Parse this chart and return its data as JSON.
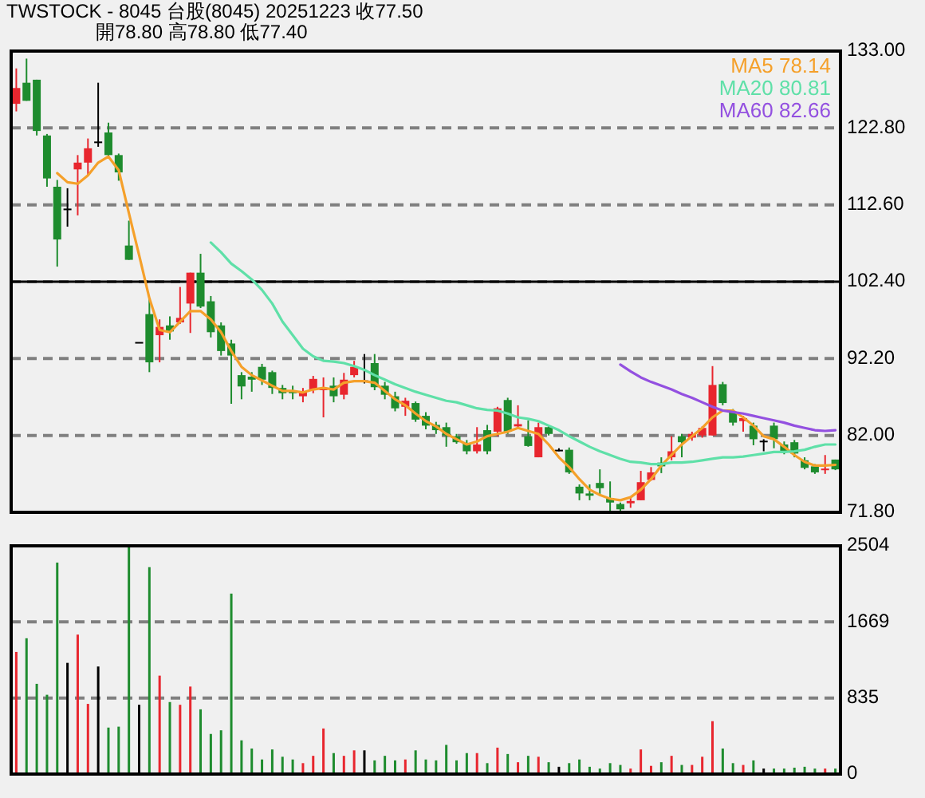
{
  "chart_data": [
    {
      "type": "candlestick",
      "title": "TWSTOCK - 8045 台股(8045) 20251223 收77.50",
      "subtitle": "開78.80 高78.80 低77.40",
      "categories": [
        null,
        null,
        null,
        null,
        null,
        null,
        null,
        null,
        null,
        null,
        null,
        null,
        null,
        null,
        null,
        null,
        null,
        null,
        null,
        null,
        null,
        null,
        null,
        null,
        null,
        null,
        null,
        null,
        null,
        null,
        null,
        null,
        null,
        null,
        null,
        null,
        null,
        null,
        null,
        null,
        null,
        null,
        null,
        null,
        null,
        null,
        null,
        null,
        null,
        null,
        null,
        null,
        null,
        null,
        null,
        null,
        null,
        null,
        null,
        null,
        null,
        null,
        null,
        null,
        null,
        null,
        null,
        null,
        null,
        null,
        null,
        null,
        null,
        null,
        null,
        null,
        null,
        null,
        null,
        null,
        null
      ],
      "ohlc": [
        [
          126.0,
          130.7,
          125.0,
          128.1
        ],
        [
          128.8,
          132.0,
          126.4,
          126.4
        ],
        [
          129.2,
          129.2,
          121.8,
          122.4
        ],
        [
          121.8,
          122.0,
          115.0,
          116.1
        ],
        [
          115.0,
          115.9,
          104.4,
          108.0
        ],
        [
          112.1,
          114.8,
          109.7,
          112.1
        ],
        [
          117.3,
          119.2,
          111.2,
          118.2
        ],
        [
          118.2,
          121.4,
          116.5,
          120.1
        ],
        [
          121.0,
          128.8,
          120.3,
          121.0
        ],
        [
          122.2,
          123.5,
          118.8,
          119.2
        ],
        [
          119.2,
          119.4,
          115.8,
          116.9
        ],
        [
          107.2,
          110.5,
          105.3,
          105.3
        ],
        [
          94.4,
          94.4,
          94.4,
          94.4
        ],
        [
          98.1,
          100.2,
          90.4,
          91.7
        ],
        [
          95.3,
          97.4,
          91.7,
          96.4
        ],
        [
          96.6,
          97.8,
          94.7,
          95.8
        ],
        [
          97.0,
          101.7,
          96.8,
          97.6
        ],
        [
          99.5,
          103.6,
          95.6,
          103.6
        ],
        [
          103.6,
          106.1,
          98.9,
          99.1
        ],
        [
          99.8,
          100.5,
          95.0,
          95.7
        ],
        [
          96.6,
          97.0,
          92.6,
          93.2
        ],
        [
          94.2,
          94.7,
          86.2,
          92.6
        ],
        [
          90.0,
          90.4,
          86.8,
          88.5
        ],
        [
          89.8,
          90.4,
          87.8,
          89.4
        ],
        [
          91.1,
          91.5,
          88.7,
          89.4
        ],
        [
          90.4,
          90.6,
          87.5,
          88.3
        ],
        [
          88.3,
          88.7,
          86.8,
          87.6
        ],
        [
          88.0,
          88.6,
          86.8,
          87.6
        ],
        [
          87.2,
          88.3,
          86.4,
          87.9
        ],
        [
          88.1,
          89.9,
          87.6,
          89.5
        ],
        [
          88.0,
          89.7,
          84.4,
          88.3
        ],
        [
          88.6,
          89.7,
          86.4,
          87.2
        ],
        [
          87.4,
          90.3,
          86.8,
          89.4
        ],
        [
          90.0,
          91.9,
          89.7,
          91.1
        ],
        [
          89.3,
          92.8,
          88.9,
          89.3
        ],
        [
          91.6,
          92.8,
          88.0,
          88.4
        ],
        [
          88.6,
          89.1,
          86.8,
          87.4
        ],
        [
          87.2,
          87.8,
          85.2,
          85.6
        ],
        [
          85.8,
          87.0,
          84.6,
          86.6
        ],
        [
          86.3,
          86.5,
          83.8,
          84.1
        ],
        [
          84.6,
          85.1,
          82.8,
          83.3
        ],
        [
          83.4,
          83.8,
          82.2,
          82.7
        ],
        [
          83.1,
          83.7,
          80.5,
          82.0
        ],
        [
          81.9,
          82.2,
          80.9,
          81.1
        ],
        [
          81.0,
          81.4,
          79.5,
          79.9
        ],
        [
          79.9,
          83.1,
          79.6,
          80.8
        ],
        [
          82.7,
          83.4,
          79.5,
          79.9
        ],
        [
          82.5,
          85.8,
          81.9,
          85.6
        ],
        [
          86.7,
          87.0,
          82.2,
          82.5
        ],
        [
          83.2,
          86.0,
          82.9,
          83.5
        ],
        [
          81.9,
          84.0,
          80.5,
          80.6
        ],
        [
          79.1,
          83.7,
          79.1,
          83.1
        ],
        [
          83.1,
          83.3,
          82.0,
          82.2
        ],
        [
          80.1,
          80.3,
          79.9,
          80.1
        ],
        [
          80.1,
          80.4,
          76.9,
          77.1
        ],
        [
          75.2,
          75.5,
          73.4,
          74.3
        ],
        [
          74.3,
          75.5,
          73.4,
          74.0
        ],
        [
          75.7,
          77.5,
          74.1,
          75.0
        ],
        [
          73.7,
          75.9,
          72.0,
          73.1
        ],
        [
          72.9,
          73.1,
          72.0,
          72.2
        ],
        [
          73.0,
          73.7,
          72.4,
          73.3
        ],
        [
          73.4,
          77.3,
          73.4,
          75.8
        ],
        [
          76.1,
          77.8,
          76.0,
          77.1
        ],
        [
          78.4,
          79.1,
          77.0,
          77.9
        ],
        [
          79.1,
          81.9,
          78.7,
          79.9
        ],
        [
          81.9,
          82.2,
          79.1,
          81.1
        ],
        [
          81.7,
          82.5,
          81.3,
          82.2
        ],
        [
          82.0,
          83.2,
          81.7,
          83.0
        ],
        [
          82.0,
          91.2,
          82.0,
          88.7
        ],
        [
          88.8,
          89.1,
          86.0,
          86.3
        ],
        [
          85.1,
          85.5,
          83.3,
          83.7
        ],
        [
          83.9,
          84.6,
          82.5,
          84.3
        ],
        [
          83.3,
          83.7,
          80.7,
          81.5
        ],
        [
          81.3,
          81.5,
          79.9,
          81.3
        ],
        [
          83.3,
          83.7,
          80.3,
          81.5
        ],
        [
          80.8,
          81.2,
          79.5,
          79.9
        ],
        [
          81.1,
          81.4,
          79.1,
          79.6
        ],
        [
          78.7,
          79.1,
          77.5,
          77.7
        ],
        [
          77.9,
          78.2,
          76.9,
          77.1
        ],
        [
          77.4,
          79.4,
          76.9,
          77.6
        ],
        [
          78.8,
          78.8,
          77.4,
          77.5
        ]
      ],
      "colors": [
        "#e8262e",
        "#1e8c2e",
        "#1e8c2e",
        "#1e8c2e",
        "#1e8c2e",
        "#000000",
        "#e8262e",
        "#e8262e",
        "#000000",
        "#1e8c2e",
        "#1e8c2e",
        "#1e8c2e",
        "#000000",
        "#1e8c2e",
        "#e8262e",
        "#1e8c2e",
        "#e8262e",
        "#e8262e",
        "#1e8c2e",
        "#1e8c2e",
        "#1e8c2e",
        "#1e8c2e",
        "#1e8c2e",
        "#1e8c2e",
        "#1e8c2e",
        "#1e8c2e",
        "#1e8c2e",
        "#1e8c2e",
        "#e8262e",
        "#e8262e",
        "#e8262e",
        "#1e8c2e",
        "#e8262e",
        "#e8262e",
        "#000000",
        "#1e8c2e",
        "#1e8c2e",
        "#1e8c2e",
        "#e8262e",
        "#1e8c2e",
        "#1e8c2e",
        "#1e8c2e",
        "#1e8c2e",
        "#1e8c2e",
        "#1e8c2e",
        "#e8262e",
        "#1e8c2e",
        "#e8262e",
        "#1e8c2e",
        "#e8262e",
        "#1e8c2e",
        "#e8262e",
        "#1e8c2e",
        "#000000",
        "#1e8c2e",
        "#1e8c2e",
        "#1e8c2e",
        "#1e8c2e",
        "#1e8c2e",
        "#1e8c2e",
        "#e8262e",
        "#e8262e",
        "#e8262e",
        "#1e8c2e",
        "#e8262e",
        "#1e8c2e",
        "#e8262e",
        "#e8262e",
        "#e8262e",
        "#1e8c2e",
        "#1e8c2e",
        "#e8262e",
        "#1e8c2e",
        "#000000",
        "#1e8c2e",
        "#1e8c2e",
        "#1e8c2e",
        "#1e8c2e",
        "#1e8c2e",
        "#e8262e",
        "#1e8c2e"
      ],
      "series": [
        {
          "name": "MA5 78.14",
          "type": "line",
          "color": "#f5a02a",
          "values": [
            null,
            null,
            null,
            null,
            116.8,
            115.6,
            115.4,
            116.5,
            118.2,
            119.0,
            117.2,
            111.5,
            105.9,
            100.2,
            96.0,
            95.7,
            97.1,
            98.5,
            98.5,
            97.4,
            95.7,
            93.2,
            91.1,
            90.0,
            89.3,
            88.6,
            87.9,
            87.9,
            87.7,
            88.1,
            88.3,
            88.1,
            89.0,
            89.2,
            89.2,
            89.0,
            87.9,
            86.8,
            86.0,
            84.9,
            83.9,
            83.2,
            82.2,
            81.5,
            80.8,
            81.2,
            81.9,
            82.2,
            82.5,
            83.0,
            82.6,
            82.2,
            80.8,
            79.1,
            77.8,
            76.2,
            74.8,
            74.1,
            73.6,
            73.4,
            73.8,
            74.8,
            76.2,
            78.0,
            79.4,
            80.8,
            81.9,
            83.0,
            84.4,
            85.3,
            85.3,
            84.4,
            83.3,
            81.9,
            81.5,
            80.5,
            79.4,
            78.5,
            78.0,
            78.0,
            78.1
          ]
        },
        {
          "name": "MA20 80.81",
          "type": "line",
          "color": "#5fe0a8",
          "values": [
            null,
            null,
            null,
            null,
            null,
            null,
            null,
            null,
            null,
            null,
            null,
            null,
            null,
            null,
            null,
            null,
            null,
            null,
            null,
            107.6,
            106.3,
            104.8,
            103.8,
            102.7,
            101.3,
            99.5,
            97.1,
            95.3,
            93.5,
            92.5,
            91.9,
            91.8,
            91.6,
            91.2,
            90.7,
            90.0,
            89.4,
            88.8,
            88.3,
            87.8,
            87.4,
            87.0,
            86.6,
            86.4,
            86.0,
            85.6,
            85.4,
            85.3,
            84.9,
            84.4,
            84.2,
            83.9,
            83.3,
            82.7,
            81.9,
            81.2,
            80.5,
            79.9,
            79.4,
            78.9,
            78.5,
            78.4,
            78.2,
            78.2,
            78.4,
            78.4,
            78.5,
            78.7,
            78.9,
            79.1,
            79.1,
            79.2,
            79.4,
            79.6,
            79.8,
            79.8,
            79.9,
            80.1,
            80.5,
            80.8,
            80.8
          ]
        },
        {
          "name": "MA60 82.66",
          "type": "line",
          "color": "#9350e0",
          "values": [
            null,
            null,
            null,
            null,
            null,
            null,
            null,
            null,
            null,
            null,
            null,
            null,
            null,
            null,
            null,
            null,
            null,
            null,
            null,
            null,
            null,
            null,
            null,
            null,
            null,
            null,
            null,
            null,
            null,
            null,
            null,
            null,
            null,
            null,
            null,
            null,
            null,
            null,
            null,
            null,
            null,
            null,
            null,
            null,
            null,
            null,
            null,
            null,
            null,
            null,
            null,
            null,
            null,
            null,
            null,
            null,
            null,
            null,
            null,
            91.4,
            90.5,
            89.7,
            89.1,
            88.6,
            88.1,
            87.5,
            87.0,
            86.4,
            85.8,
            85.3,
            85.1,
            84.9,
            84.6,
            84.3,
            84.0,
            83.7,
            83.3,
            83.0,
            82.7,
            82.6,
            82.7
          ]
        }
      ],
      "ylim": [
        71.8,
        133.0
      ],
      "yticks": [
        {
          "value": 71.8,
          "label": "71.80"
        },
        {
          "value": 82.0,
          "label": "82.00"
        },
        {
          "value": 92.2,
          "label": "92.20"
        },
        {
          "value": 102.4,
          "label": "102.40"
        },
        {
          "value": 112.6,
          "label": "112.60"
        },
        {
          "value": 122.8,
          "label": "122.80"
        },
        {
          "value": 133.0,
          "label": "133.00"
        }
      ],
      "ref_lines": [
        {
          "axis": "y",
          "value": 102.4,
          "color": "#000000"
        }
      ],
      "grid": "y",
      "legend": "top right",
      "tick_labels": "y"
    },
    {
      "type": "bar",
      "categories": [
        null,
        null,
        null,
        null,
        null,
        null,
        null,
        null,
        null,
        null,
        null,
        null,
        null,
        null,
        null,
        null,
        null,
        null,
        null,
        null,
        null,
        null,
        null,
        null,
        null,
        null,
        null,
        null,
        null,
        null,
        null,
        null,
        null,
        null,
        null,
        null,
        null,
        null,
        null,
        null,
        null,
        null,
        null,
        null,
        null,
        null,
        null,
        null,
        null,
        null,
        null,
        null,
        null,
        null,
        null,
        null,
        null,
        null,
        null,
        null,
        null,
        null,
        null,
        null,
        null,
        null,
        null,
        null,
        null,
        null,
        null,
        null,
        null,
        null,
        null,
        null,
        null,
        null,
        null,
        null,
        null
      ],
      "values": [
        1340,
        1490,
        990,
        870,
        2320,
        1220,
        1530,
        770,
        1180,
        510,
        520,
        2500,
        760,
        2270,
        1080,
        790,
        760,
        960,
        710,
        440,
        480,
        1980,
        370,
        280,
        160,
        270,
        190,
        160,
        120,
        200,
        500,
        230,
        200,
        260,
        260,
        150,
        200,
        150,
        160,
        260,
        160,
        150,
        320,
        150,
        230,
        230,
        120,
        290,
        220,
        130,
        200,
        190,
        130,
        80,
        120,
        160,
        80,
        60,
        120,
        100,
        60,
        270,
        90,
        130,
        200,
        100,
        100,
        190,
        580,
        280,
        120,
        100,
        150,
        60,
        60,
        60,
        70,
        80,
        60,
        60,
        60
      ],
      "colors": [
        "#e8262e",
        "#1e8c2e",
        "#1e8c2e",
        "#1e8c2e",
        "#1e8c2e",
        "#000000",
        "#e8262e",
        "#e8262e",
        "#000000",
        "#1e8c2e",
        "#1e8c2e",
        "#1e8c2e",
        "#000000",
        "#1e8c2e",
        "#e8262e",
        "#1e8c2e",
        "#e8262e",
        "#e8262e",
        "#1e8c2e",
        "#1e8c2e",
        "#1e8c2e",
        "#1e8c2e",
        "#1e8c2e",
        "#1e8c2e",
        "#1e8c2e",
        "#1e8c2e",
        "#1e8c2e",
        "#1e8c2e",
        "#e8262e",
        "#e8262e",
        "#e8262e",
        "#1e8c2e",
        "#e8262e",
        "#e8262e",
        "#000000",
        "#1e8c2e",
        "#1e8c2e",
        "#1e8c2e",
        "#e8262e",
        "#1e8c2e",
        "#1e8c2e",
        "#1e8c2e",
        "#1e8c2e",
        "#1e8c2e",
        "#1e8c2e",
        "#e8262e",
        "#1e8c2e",
        "#e8262e",
        "#1e8c2e",
        "#e8262e",
        "#1e8c2e",
        "#e8262e",
        "#1e8c2e",
        "#000000",
        "#1e8c2e",
        "#1e8c2e",
        "#1e8c2e",
        "#1e8c2e",
        "#1e8c2e",
        "#1e8c2e",
        "#e8262e",
        "#e8262e",
        "#e8262e",
        "#1e8c2e",
        "#e8262e",
        "#1e8c2e",
        "#e8262e",
        "#e8262e",
        "#e8262e",
        "#1e8c2e",
        "#1e8c2e",
        "#e8262e",
        "#1e8c2e",
        "#000000",
        "#1e8c2e",
        "#1e8c2e",
        "#1e8c2e",
        "#1e8c2e",
        "#1e8c2e",
        "#e8262e",
        "#1e8c2e"
      ],
      "ylim": [
        0,
        2504
      ],
      "yticks": [
        0,
        835,
        1669,
        2504
      ],
      "grid": "y",
      "tick_labels": "y"
    }
  ]
}
